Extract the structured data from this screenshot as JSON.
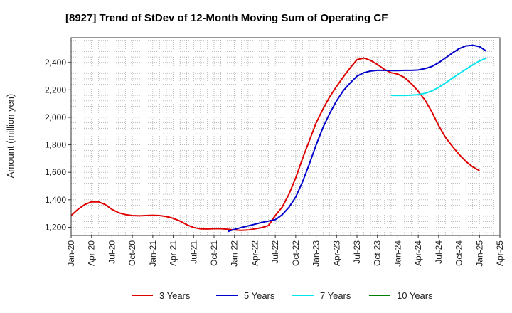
{
  "chart_data": {
    "type": "line",
    "title": "[8927]  Trend of StDev of 12-Month Moving Sum of Operating CF",
    "ylabel": "Amount (million yen)",
    "xlabel": "",
    "ylim": [
      1140,
      2580
    ],
    "y_ticks": [
      1200,
      1400,
      1600,
      1800,
      2000,
      2200,
      2400
    ],
    "y_tick_labels": [
      "1,200",
      "1,400",
      "1,600",
      "1,800",
      "2,000",
      "2,200",
      "2,400"
    ],
    "x_ticks": [
      "2020-01",
      "2020-04",
      "2020-07",
      "2020-10",
      "2021-01",
      "2021-04",
      "2021-07",
      "2021-10",
      "2022-01",
      "2022-04",
      "2022-07",
      "2022-10",
      "2023-01",
      "2023-04",
      "2023-07",
      "2023-10",
      "2024-01",
      "2024-04",
      "2024-07",
      "2024-10",
      "2025-01",
      "2025-04"
    ],
    "x_tick_labels": [
      "Jan-20",
      "Apr-20",
      "Jul-20",
      "Oct-20",
      "Jan-21",
      "Apr-21",
      "Jul-21",
      "Oct-21",
      "Jan-22",
      "Apr-22",
      "Jul-22",
      "Oct-22",
      "Jan-23",
      "Apr-23",
      "Jul-23",
      "Oct-23",
      "Jan-24",
      "Apr-24",
      "Jul-24",
      "Oct-24",
      "Jan-25",
      "Apr-25"
    ],
    "grid": true,
    "legend_position": "bottom",
    "series": [
      {
        "name": "3 Years",
        "color": "#e00000",
        "points": [
          [
            "2020-01",
            1285
          ],
          [
            "2020-02",
            1330
          ],
          [
            "2020-03",
            1365
          ],
          [
            "2020-04",
            1385
          ],
          [
            "2020-05",
            1385
          ],
          [
            "2020-06",
            1365
          ],
          [
            "2020-07",
            1330
          ],
          [
            "2020-08",
            1305
          ],
          [
            "2020-09",
            1292
          ],
          [
            "2020-10",
            1285
          ],
          [
            "2020-11",
            1283
          ],
          [
            "2020-12",
            1285
          ],
          [
            "2021-01",
            1287
          ],
          [
            "2021-02",
            1285
          ],
          [
            "2021-03",
            1278
          ],
          [
            "2021-04",
            1265
          ],
          [
            "2021-05",
            1245
          ],
          [
            "2021-06",
            1218
          ],
          [
            "2021-07",
            1198
          ],
          [
            "2021-08",
            1188
          ],
          [
            "2021-09",
            1187
          ],
          [
            "2021-10",
            1189
          ],
          [
            "2021-11",
            1189
          ],
          [
            "2021-12",
            1185
          ],
          [
            "2022-01",
            1180
          ],
          [
            "2022-02",
            1178
          ],
          [
            "2022-03",
            1180
          ],
          [
            "2022-04",
            1188
          ],
          [
            "2022-05",
            1197
          ],
          [
            "2022-06",
            1213
          ],
          [
            "2022-07",
            1285
          ],
          [
            "2022-08",
            1345
          ],
          [
            "2022-09",
            1440
          ],
          [
            "2022-10",
            1560
          ],
          [
            "2022-11",
            1700
          ],
          [
            "2022-12",
            1830
          ],
          [
            "2023-01",
            1960
          ],
          [
            "2023-02",
            2060
          ],
          [
            "2023-03",
            2150
          ],
          [
            "2023-04",
            2225
          ],
          [
            "2023-05",
            2295
          ],
          [
            "2023-06",
            2360
          ],
          [
            "2023-07",
            2420
          ],
          [
            "2023-08",
            2432
          ],
          [
            "2023-09",
            2415
          ],
          [
            "2023-10",
            2385
          ],
          [
            "2023-11",
            2350
          ],
          [
            "2023-12",
            2325
          ],
          [
            "2024-01",
            2315
          ],
          [
            "2024-02",
            2290
          ],
          [
            "2024-03",
            2245
          ],
          [
            "2024-04",
            2190
          ],
          [
            "2024-05",
            2125
          ],
          [
            "2024-06",
            2040
          ],
          [
            "2024-07",
            1940
          ],
          [
            "2024-08",
            1855
          ],
          [
            "2024-09",
            1790
          ],
          [
            "2024-10",
            1730
          ],
          [
            "2024-11",
            1680
          ],
          [
            "2024-12",
            1640
          ],
          [
            "2025-01",
            1612
          ]
        ]
      },
      {
        "name": "5 Years",
        "color": "#0000cc",
        "points": [
          [
            "2021-12",
            1168
          ],
          [
            "2022-01",
            1185
          ],
          [
            "2022-02",
            1198
          ],
          [
            "2022-03",
            1210
          ],
          [
            "2022-04",
            1222
          ],
          [
            "2022-05",
            1235
          ],
          [
            "2022-06",
            1245
          ],
          [
            "2022-07",
            1255
          ],
          [
            "2022-08",
            1290
          ],
          [
            "2022-09",
            1345
          ],
          [
            "2022-10",
            1420
          ],
          [
            "2022-11",
            1530
          ],
          [
            "2022-12",
            1660
          ],
          [
            "2023-01",
            1800
          ],
          [
            "2023-02",
            1925
          ],
          [
            "2023-03",
            2030
          ],
          [
            "2023-04",
            2120
          ],
          [
            "2023-05",
            2195
          ],
          [
            "2023-06",
            2250
          ],
          [
            "2023-07",
            2300
          ],
          [
            "2023-08",
            2325
          ],
          [
            "2023-09",
            2337
          ],
          [
            "2023-10",
            2342
          ],
          [
            "2023-11",
            2342
          ],
          [
            "2023-12",
            2340
          ],
          [
            "2024-01",
            2340
          ],
          [
            "2024-02",
            2342
          ],
          [
            "2024-03",
            2342
          ],
          [
            "2024-04",
            2345
          ],
          [
            "2024-05",
            2355
          ],
          [
            "2024-06",
            2370
          ],
          [
            "2024-07",
            2398
          ],
          [
            "2024-08",
            2432
          ],
          [
            "2024-09",
            2468
          ],
          [
            "2024-10",
            2500
          ],
          [
            "2024-11",
            2520
          ],
          [
            "2024-12",
            2525
          ],
          [
            "2025-01",
            2515
          ],
          [
            "2025-02",
            2482
          ]
        ]
      },
      {
        "name": "7 Years",
        "color": "#00e5ee",
        "points": [
          [
            "2023-12",
            2160
          ],
          [
            "2024-01",
            2160
          ],
          [
            "2024-02",
            2160
          ],
          [
            "2024-03",
            2162
          ],
          [
            "2024-04",
            2165
          ],
          [
            "2024-05",
            2175
          ],
          [
            "2024-06",
            2192
          ],
          [
            "2024-07",
            2218
          ],
          [
            "2024-08",
            2250
          ],
          [
            "2024-09",
            2285
          ],
          [
            "2024-10",
            2318
          ],
          [
            "2024-11",
            2350
          ],
          [
            "2024-12",
            2382
          ],
          [
            "2025-01",
            2410
          ],
          [
            "2025-02",
            2432
          ]
        ]
      },
      {
        "name": "10 Years",
        "color": "#008000",
        "points": []
      }
    ]
  }
}
